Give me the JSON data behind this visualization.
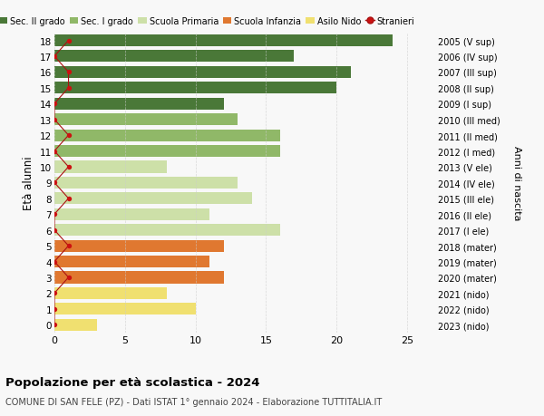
{
  "ages": [
    0,
    1,
    2,
    3,
    4,
    5,
    6,
    7,
    8,
    9,
    10,
    11,
    12,
    13,
    14,
    15,
    16,
    17,
    18
  ],
  "right_labels": [
    "2023 (nido)",
    "2022 (nido)",
    "2021 (nido)",
    "2020 (mater)",
    "2019 (mater)",
    "2018 (mater)",
    "2017 (I ele)",
    "2016 (II ele)",
    "2015 (III ele)",
    "2014 (IV ele)",
    "2013 (V ele)",
    "2012 (I med)",
    "2011 (II med)",
    "2010 (III med)",
    "2009 (I sup)",
    "2008 (II sup)",
    "2007 (III sup)",
    "2006 (IV sup)",
    "2005 (V sup)"
  ],
  "bar_values": [
    3,
    10,
    8,
    12,
    11,
    12,
    16,
    11,
    14,
    13,
    8,
    16,
    16,
    13,
    12,
    20,
    21,
    17,
    24
  ],
  "bar_colors": [
    "#f0e070",
    "#f0e070",
    "#f0e070",
    "#e07830",
    "#e07830",
    "#e07830",
    "#cde0a8",
    "#cde0a8",
    "#cde0a8",
    "#cde0a8",
    "#cde0a8",
    "#90b868",
    "#90b868",
    "#90b868",
    "#4a7838",
    "#4a7838",
    "#4a7838",
    "#4a7838",
    "#4a7838"
  ],
  "stranieri_x": [
    0,
    0,
    0,
    1,
    0,
    1,
    0,
    0,
    1,
    0,
    1,
    0,
    1,
    0,
    0,
    1,
    1,
    0,
    1
  ],
  "xlim_max": 27,
  "ylabel": "Età alunni",
  "title": "Popolazione per età scolastica - 2024",
  "subtitle": "COMUNE DI SAN FELE (PZ) - Dati ISTAT 1° gennaio 2024 - Elaborazione TUTTITALIA.IT",
  "legend_labels": [
    "Sec. II grado",
    "Sec. I grado",
    "Scuola Primaria",
    "Scuola Infanzia",
    "Asilo Nido",
    "Stranieri"
  ],
  "legend_colors": [
    "#4a7838",
    "#90b868",
    "#cde0a8",
    "#e07830",
    "#f0e070",
    "#cc2222"
  ],
  "right_axis_label": "Anni di nascita",
  "bg_color": "#f8f8f8",
  "bar_height": 0.75,
  "grid_color": "#cccccc",
  "stranieri_line_color": "#aa1111",
  "stranieri_dot_color": "#cc1111"
}
